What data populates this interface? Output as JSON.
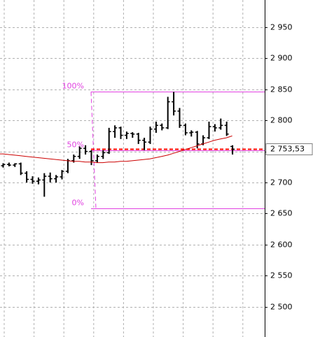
{
  "chart_data": {
    "type": "ohlc",
    "categories": [
      null,
      null,
      null,
      null,
      null,
      null,
      null,
      null,
      null,
      null,
      null,
      null,
      null,
      null,
      null,
      null,
      null,
      null,
      null,
      null,
      null,
      null,
      null,
      null,
      null,
      null,
      null,
      null,
      null,
      null,
      null,
      null,
      null,
      null,
      null,
      null,
      null,
      null,
      null,
      null
    ],
    "open": [
      2727,
      2729,
      2728,
      2730,
      2715,
      2705,
      2702,
      2704,
      2710,
      2706,
      2709,
      2718,
      2735,
      2742,
      2755,
      2750,
      2735,
      2742,
      2748,
      2782,
      2788,
      2776,
      2779,
      2778,
      2768,
      2765,
      2786,
      2792,
      2788,
      2830,
      2815,
      2792,
      2780,
      2781,
      2762,
      2772,
      2790,
      2788,
      2792,
      2758
    ],
    "high": [
      2731,
      2732,
      2731,
      2732,
      2718,
      2710,
      2708,
      2715,
      2716,
      2712,
      2720,
      2738,
      2745,
      2758,
      2760,
      2752,
      2745,
      2752,
      2788,
      2792,
      2790,
      2782,
      2781,
      2780,
      2772,
      2790,
      2798,
      2795,
      2838,
      2846,
      2820,
      2795,
      2784,
      2783,
      2776,
      2798,
      2794,
      2803,
      2798,
      2760
    ],
    "low": [
      2724,
      2726,
      2725,
      2712,
      2700,
      2698,
      2697,
      2677,
      2700,
      2700,
      2705,
      2715,
      2732,
      2738,
      2745,
      2728,
      2732,
      2738,
      2746,
      2772,
      2770,
      2770,
      2772,
      2762,
      2752,
      2762,
      2780,
      2784,
      2786,
      2808,
      2788,
      2776,
      2774,
      2755,
      2760,
      2770,
      2782,
      2785,
      2775,
      2745
    ],
    "close": [
      2729,
      2728,
      2730,
      2715,
      2705,
      2702,
      2704,
      2710,
      2706,
      2709,
      2718,
      2735,
      2742,
      2755,
      2750,
      2735,
      2742,
      2748,
      2782,
      2788,
      2776,
      2779,
      2778,
      2768,
      2765,
      2786,
      2792,
      2788,
      2830,
      2815,
      2792,
      2780,
      2781,
      2762,
      2772,
      2790,
      2788,
      2792,
      2778,
      2753.53
    ],
    "color": "#000000",
    "ma": {
      "color": "#cc0000",
      "values": [
        2746,
        2745,
        2744,
        2743,
        2742,
        2741,
        2740,
        2739,
        2738,
        2737,
        2736,
        2735,
        2734,
        2734,
        2733,
        2733,
        2732,
        2732,
        2733,
        2733,
        2734,
        2734,
        2735,
        2736,
        2737,
        2738,
        2740,
        2742,
        2744,
        2747,
        2750,
        2753,
        2756,
        2759,
        2762,
        2765,
        2768,
        2770,
        2772,
        2775
      ]
    },
    "last_price": {
      "value": 2753.53,
      "label": "2 753,53",
      "color": "#ff0000"
    },
    "fibonacci": {
      "color": "#e040e0",
      "levels": [
        {
          "value": 2846,
          "label": "100%"
        },
        {
          "value": 2752,
          "label": "50%"
        },
        {
          "value": 2658,
          "label": "0%"
        }
      ]
    },
    "ylim": [
      2451,
      2994
    ],
    "yticks": [
      {
        "value": 2500,
        "label": "2 500"
      },
      {
        "value": 2550,
        "label": "2 550"
      },
      {
        "value": 2600,
        "label": "2 600"
      },
      {
        "value": 2650,
        "label": "2 650"
      },
      {
        "value": 2700,
        "label": "2 700"
      },
      {
        "value": 2750,
        "label": "2 750"
      },
      {
        "value": 2800,
        "label": "2 800"
      },
      {
        "value": 2850,
        "label": "2 850"
      },
      {
        "value": 2900,
        "label": "2 900"
      },
      {
        "value": 2950,
        "label": "2 950"
      }
    ],
    "grid": true
  }
}
